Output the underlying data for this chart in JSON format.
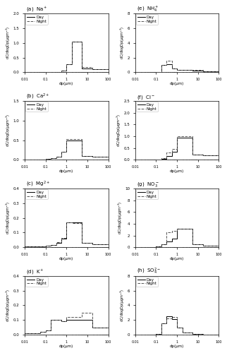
{
  "subplots": [
    {
      "label": "(a)  Na$^+$",
      "ylim": [
        0,
        2.0
      ],
      "yticks": [
        0.0,
        0.5,
        1.0,
        1.5,
        2.0
      ],
      "day": [
        0.01,
        0.01,
        0.01,
        0.01,
        0.01,
        0.01,
        0.05,
        0.27,
        1.05,
        0.12,
        0.1
      ],
      "night": [
        0.01,
        0.01,
        0.01,
        0.01,
        0.01,
        0.01,
        0.05,
        0.27,
        1.05,
        0.18,
        0.1
      ]
    },
    {
      "label": "(b)  Ca$^{2+}$",
      "ylim": [
        0,
        1.5
      ],
      "yticks": [
        0.0,
        0.5,
        1.0,
        1.5
      ],
      "day": [
        0.01,
        0.01,
        0.01,
        0.02,
        0.04,
        0.08,
        0.2,
        0.5,
        0.5,
        0.1,
        0.07
      ],
      "night": [
        0.01,
        0.01,
        0.01,
        0.02,
        0.04,
        0.08,
        0.2,
        0.52,
        0.52,
        0.1,
        0.07
      ]
    },
    {
      "label": "(c)  Mg$^{2+}$",
      "ylim": [
        0,
        0.4
      ],
      "yticks": [
        0.0,
        0.1,
        0.2,
        0.3,
        0.4
      ],
      "day": [
        0.005,
        0.005,
        0.005,
        0.01,
        0.015,
        0.03,
        0.06,
        0.17,
        0.17,
        0.03,
        0.02
      ],
      "night": [
        0.005,
        0.005,
        0.005,
        0.01,
        0.015,
        0.035,
        0.065,
        0.17,
        0.165,
        0.03,
        0.02
      ]
    },
    {
      "label": "(d)  K$^+$",
      "ylim": [
        0,
        0.4
      ],
      "yticks": [
        0.0,
        0.1,
        0.2,
        0.3,
        0.4
      ],
      "day": [
        0.01,
        0.01,
        0.02,
        0.03,
        0.1,
        0.1,
        0.09,
        0.1,
        0.1,
        0.1,
        0.05
      ],
      "night": [
        0.01,
        0.01,
        0.02,
        0.03,
        0.1,
        0.1,
        0.09,
        0.12,
        0.12,
        0.15,
        0.05
      ]
    },
    {
      "label": "(e)  NH$_4^+$",
      "ylim": [
        0,
        8
      ],
      "yticks": [
        0,
        2,
        4,
        6,
        8
      ],
      "day": [
        0.02,
        0.02,
        0.02,
        0.05,
        1.0,
        1.1,
        0.5,
        0.3,
        0.3,
        0.25,
        0.1
      ],
      "night": [
        0.02,
        0.02,
        0.02,
        0.05,
        1.0,
        1.6,
        0.5,
        0.35,
        0.35,
        0.3,
        0.1
      ]
    },
    {
      "label": "(f)  Cl$^-$",
      "ylim": [
        0,
        2.5
      ],
      "yticks": [
        0.0,
        0.5,
        1.0,
        1.5,
        2.0,
        2.5
      ],
      "day": [
        0.01,
        0.01,
        0.01,
        0.01,
        0.05,
        0.15,
        0.35,
        0.95,
        0.95,
        0.22,
        0.18
      ],
      "night": [
        0.01,
        0.01,
        0.01,
        0.01,
        0.08,
        0.32,
        0.45,
        1.0,
        1.0,
        0.22,
        0.18
      ]
    },
    {
      "label": "(g)  NO$_3^-$",
      "ylim": [
        0,
        10
      ],
      "yticks": [
        0,
        2,
        4,
        6,
        8,
        10
      ],
      "day": [
        0.05,
        0.05,
        0.05,
        0.1,
        0.5,
        1.0,
        1.5,
        3.2,
        3.2,
        0.5,
        0.3
      ],
      "night": [
        0.05,
        0.05,
        0.05,
        0.1,
        0.5,
        2.5,
        2.8,
        3.2,
        3.2,
        0.5,
        0.3
      ]
    },
    {
      "label": "(h)  SO$_4^{2-}$",
      "ylim": [
        0,
        8
      ],
      "yticks": [
        0,
        2,
        4,
        6,
        8
      ],
      "day": [
        0.05,
        0.05,
        0.05,
        0.1,
        1.5,
        2.5,
        2.1,
        1.0,
        0.3,
        0.1,
        0.05
      ],
      "night": [
        0.05,
        0.05,
        0.05,
        0.1,
        1.5,
        2.2,
        2.4,
        1.0,
        0.3,
        0.1,
        0.05
      ]
    }
  ],
  "bin_edges": [
    0.01,
    0.03,
    0.056,
    0.1,
    0.18,
    0.32,
    0.56,
    1.0,
    1.8,
    5.6,
    18,
    100
  ],
  "xlabel": "dp(μm)",
  "ylabel": "dC/dlogDp(μgm$^{-3}$)",
  "day_color": "#000000",
  "night_color": "#555555",
  "background": "#ffffff"
}
